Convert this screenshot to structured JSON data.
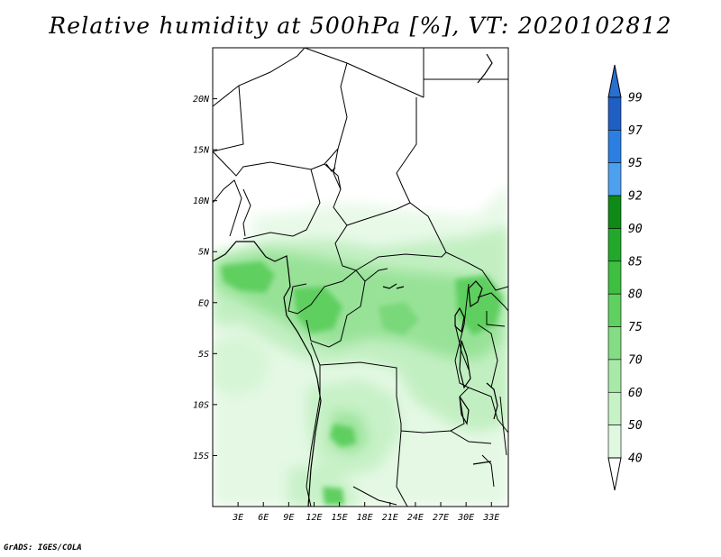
{
  "title": "Relative humidity at 500hPa [%], VT: 2020102812",
  "credit": "GrADS: IGES/COLA",
  "map": {
    "lat_labels": [
      "20N",
      "15N",
      "10N",
      "5N",
      "EQ",
      "5S",
      "10S",
      "15S"
    ],
    "lat_values": [
      20,
      15,
      10,
      5,
      0,
      -5,
      -10,
      -15
    ],
    "lon_labels": [
      "3E",
      "6E",
      "9E",
      "12E",
      "15E",
      "18E",
      "21E",
      "24E",
      "27E",
      "30E",
      "33E"
    ],
    "lon_values": [
      3,
      6,
      9,
      12,
      15,
      18,
      21,
      24,
      27,
      30,
      33
    ],
    "lon_range": [
      0,
      35
    ],
    "lat_range": [
      -20,
      25
    ]
  },
  "colorbar": {
    "labels": [
      "99",
      "97",
      "95",
      "92",
      "90",
      "85",
      "80",
      "75",
      "70",
      "60",
      "50",
      "40"
    ],
    "colors": [
      "#1f5fc4",
      "#2c7fe0",
      "#4da0ee",
      "#0f8a16",
      "#22a82a",
      "#3fbf3f",
      "#60d060",
      "#84dc84",
      "#a8e8a8",
      "#c6f2c6",
      "#dff8df",
      "#f2fdf2"
    ],
    "top_arrow_color": "#2a6fd0",
    "bottom_arrow_color": "#ffffff"
  }
}
